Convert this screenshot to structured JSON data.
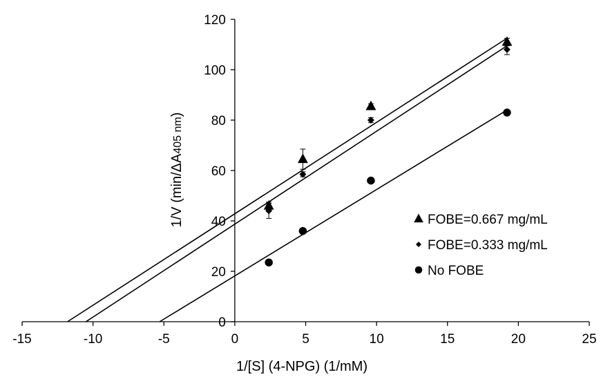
{
  "chart_data": {
    "type": "scatter",
    "title": "",
    "xlabel": "1/[S] (4-NPG) (1/mM)",
    "ylabel": {
      "prefix": "1/V (min/ΔA",
      "subscript": "405 nm",
      "suffix": ")"
    },
    "xlim": [
      -15,
      25
    ],
    "ylim": [
      0,
      120
    ],
    "xticks": [
      -15,
      -10,
      -5,
      0,
      5,
      10,
      15,
      20,
      25
    ],
    "yticks": [
      0,
      20,
      40,
      60,
      80,
      100,
      120
    ],
    "grid": false,
    "legend_position": "right",
    "series": [
      {
        "name": "FOBE=0.667 mg/mL",
        "marker": "triangle",
        "color": "#000000",
        "x": [
          2.4,
          4.8,
          9.6,
          19.2
        ],
        "y": [
          46,
          64.5,
          85.5,
          111
        ],
        "error": [
          1.5,
          4,
          1,
          1.5
        ],
        "fit": {
          "x": [
            -11.8,
            19.2
          ],
          "y": [
            0,
            112.5
          ]
        }
      },
      {
        "name": "FOBE=0.333 mg/mL",
        "marker": "diamond",
        "color": "#000000",
        "x": [
          2.4,
          4.8,
          9.6,
          19.2
        ],
        "y": [
          44,
          58.5,
          80,
          108
        ],
        "error": [
          3,
          1,
          1,
          2
        ],
        "fit": {
          "x": [
            -10.5,
            19.2
          ],
          "y": [
            0,
            109.5
          ]
        }
      },
      {
        "name": "No FOBE",
        "marker": "circle",
        "color": "#000000",
        "x": [
          2.4,
          4.8,
          9.6,
          19.2
        ],
        "y": [
          23.5,
          36,
          56,
          83
        ],
        "error": [
          0,
          0,
          0,
          0
        ],
        "fit": {
          "x": [
            -5.3,
            19.2
          ],
          "y": [
            0,
            84
          ]
        }
      }
    ]
  }
}
